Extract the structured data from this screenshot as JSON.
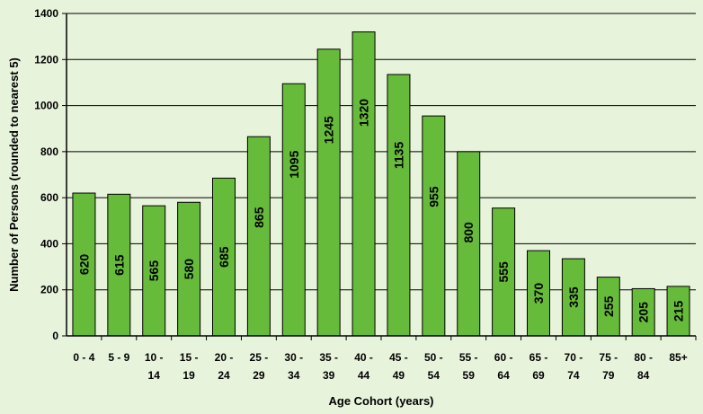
{
  "chart_data": {
    "type": "bar",
    "title": "",
    "xlabel": "Age Cohort (years)",
    "ylabel": "Number of Persons (rounded to nearest 5)",
    "ylim": [
      0,
      1400
    ],
    "yticks": [
      0,
      200,
      400,
      600,
      800,
      1000,
      1200,
      1400
    ],
    "grid": true,
    "categories": [
      [
        "0 - 4"
      ],
      [
        "5 - 9"
      ],
      [
        "10 -",
        "14"
      ],
      [
        "15 -",
        "19"
      ],
      [
        "20 -",
        "24"
      ],
      [
        "25 -",
        "29"
      ],
      [
        "30 -",
        "34"
      ],
      [
        "35 -",
        "39"
      ],
      [
        "40 -",
        "44"
      ],
      [
        "45 -",
        "49"
      ],
      [
        "50 -",
        "54"
      ],
      [
        "55 -",
        "59"
      ],
      [
        "60 -",
        "64"
      ],
      [
        "65 -",
        "69"
      ],
      [
        "70 -",
        "74"
      ],
      [
        "75 -",
        "79"
      ],
      [
        "80 -",
        "84"
      ],
      [
        "85+"
      ]
    ],
    "values": [
      620,
      615,
      565,
      580,
      685,
      865,
      1095,
      1245,
      1320,
      1135,
      955,
      800,
      555,
      370,
      335,
      255,
      205,
      215
    ],
    "colors": {
      "background": "#e8f3dc",
      "bar_fill": "#66bb3a",
      "bar_stroke": "#000000",
      "grid": "#000000"
    }
  }
}
